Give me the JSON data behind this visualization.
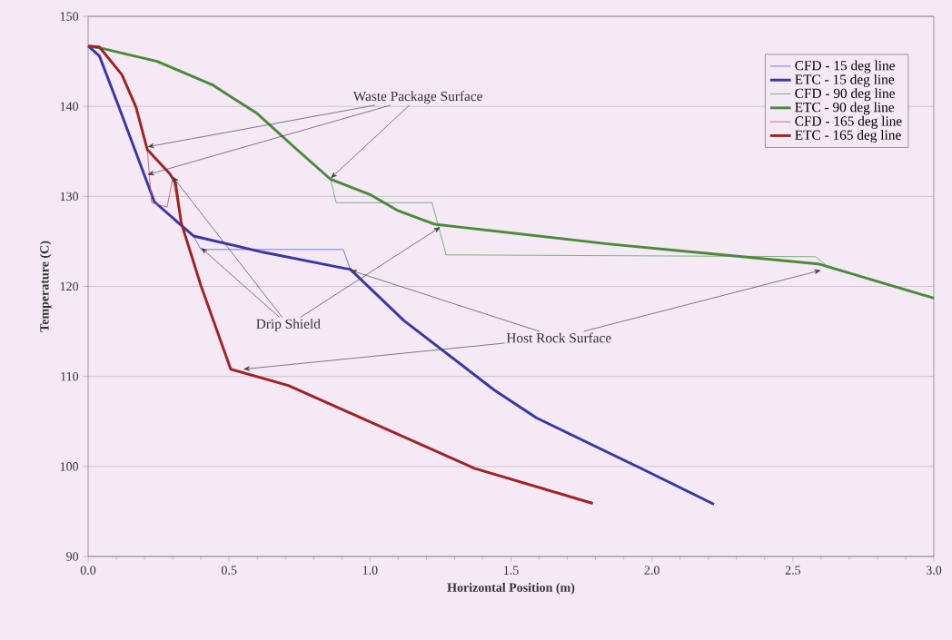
{
  "chart_data": {
    "type": "line",
    "xlabel": "Horizontal Position (m)",
    "ylabel": "Temperature (C)",
    "series": [
      {
        "name": "CFD - 15 deg line",
        "color": "#5a5ad0",
        "x": [
          0,
          0.04,
          0.106,
          0.21,
          0.235,
          0.33,
          0.374,
          0.4,
          0.905,
          0.93,
          1.12,
          1.44,
          1.59,
          1.96,
          2.22
        ],
        "values": [
          146.7,
          145.6,
          140.2,
          131.5,
          129.4,
          126.8,
          125.6,
          124.1,
          124.1,
          121.9,
          116.2,
          108.5,
          105.4,
          99.8,
          95.8
        ]
      },
      {
        "name": "ETC - 15 deg line",
        "color": "#3a36a8",
        "x": [
          0,
          0.04,
          0.106,
          0.21,
          0.235,
          0.33,
          0.374,
          0.62,
          0.91,
          0.93,
          1.12,
          1.44,
          1.59,
          1.96,
          2.22
        ],
        "values": [
          146.7,
          145.6,
          140.2,
          131.5,
          129.4,
          126.8,
          125.6,
          123.8,
          122.0,
          121.9,
          116.2,
          108.5,
          105.4,
          99.8,
          95.8
        ]
      },
      {
        "name": "CFD - 90 deg line",
        "color": "#5aa55a",
        "x": [
          0,
          0.04,
          0.245,
          0.44,
          0.6,
          0.73,
          0.86,
          0.88,
          1.22,
          1.27,
          2.58,
          2.62,
          3.0
        ],
        "values": [
          146.7,
          146.5,
          145.0,
          142.4,
          139.2,
          135.5,
          131.9,
          129.3,
          129.3,
          123.5,
          123.3,
          122.3,
          118.7
        ]
      },
      {
        "name": "ETC - 90 deg line",
        "color": "#4a8a3a",
        "x": [
          0,
          0.04,
          0.245,
          0.44,
          0.6,
          0.73,
          0.86,
          1.0,
          1.1,
          1.23,
          1.85,
          2.59,
          3.0
        ],
        "values": [
          146.7,
          146.5,
          145.0,
          142.4,
          139.2,
          135.5,
          131.9,
          130.2,
          128.4,
          126.9,
          124.7,
          122.5,
          118.7
        ]
      },
      {
        "name": "CFD - 165 deg line",
        "color": "#c85050",
        "x": [
          0,
          0.04,
          0.12,
          0.17,
          0.21,
          0.225,
          0.28,
          0.3,
          0.33,
          0.4,
          0.506,
          0.71,
          1.37,
          1.79
        ],
        "values": [
          146.7,
          146.6,
          143.5,
          139.9,
          135.2,
          129.3,
          128.8,
          132.0,
          127.1,
          120.1,
          110.8,
          109.0,
          99.8,
          95.9
        ]
      },
      {
        "name": "ETC - 165 deg line",
        "color": "#a02222",
        "x": [
          0,
          0.04,
          0.12,
          0.17,
          0.21,
          0.29,
          0.31,
          0.33,
          0.4,
          0.506,
          0.71,
          1.37,
          1.79
        ],
        "values": [
          146.7,
          146.6,
          143.5,
          139.9,
          135.2,
          132.5,
          131.5,
          127.1,
          120.1,
          110.8,
          109.0,
          99.8,
          95.9
        ]
      }
    ],
    "xlim": [
      0,
      3.0
    ],
    "ylim": [
      90,
      150
    ],
    "xticks": [
      {
        "value": 0,
        "label": "0.0"
      },
      0.5,
      {
        "value": 1,
        "label": "1.0"
      },
      1.5,
      {
        "value": 2,
        "label": "2.0"
      },
      2.5,
      {
        "value": 3,
        "label": "3.0"
      }
    ],
    "yticks": [
      90,
      100,
      110,
      120,
      130,
      140,
      150
    ],
    "grid": "y",
    "legend": "top right",
    "marker": "none",
    "line_style": "solid",
    "annotations": [
      {
        "text": "Waste Package Surface",
        "x": 0.86,
        "y": 132.0
      },
      {
        "text": "Drip Shield",
        "x": 0.4,
        "y": 124.3
      },
      {
        "text": "Host Rock Surface",
        "x": 0.93,
        "y": 121.8
      }
    ]
  }
}
